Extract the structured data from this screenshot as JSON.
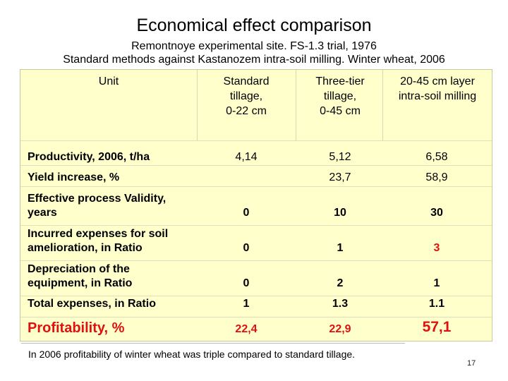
{
  "title": "Economical effect comparison",
  "subtitle_1": "Remontnoye experimental site. FS-1.3 trial, 1976",
  "subtitle_2": "Standard methods against Kastanozem intra-soil milling. Winter wheat, 2006",
  "table": {
    "header": {
      "unit": "Unit",
      "col1": [
        "Standard",
        "tillage,",
        "0-22 cm"
      ],
      "col2": [
        "Three-tier",
        "tillage,",
        "0-45 cm"
      ],
      "col3": [
        "20-45 cm layer",
        "intra-soil milling"
      ]
    },
    "rows": [
      {
        "label": [
          "Productivity, 2006, t/ha"
        ],
        "values": [
          "4,14",
          "5,12",
          "6,58"
        ]
      },
      {
        "label": [
          "Yield increase, %"
        ],
        "values": [
          "",
          "23,7",
          "58,9"
        ]
      },
      {
        "label": [
          "Effective process Validity,",
          "years"
        ],
        "values": [
          "0",
          "10",
          "30"
        ]
      },
      {
        "label": [
          "Incurred expenses for soil",
          "amelioration, in Ratio"
        ],
        "values": [
          "0",
          "1",
          "3"
        ]
      },
      {
        "label": [
          "Depreciation of the",
          "equipment, in Ratio"
        ],
        "values": [
          "0",
          "2",
          "1"
        ]
      },
      {
        "label": [
          "Total expenses, in Ratio"
        ],
        "values": [
          "1",
          "1.3",
          "1.1"
        ]
      },
      {
        "label": [
          "Profitability, %"
        ],
        "values": [
          "22,4",
          "22,9",
          "57,1"
        ]
      }
    ]
  },
  "footnote": "In 2006 profitability of winter wheat was triple compared to standard tillage.",
  "page_number": "17",
  "colors": {
    "table_background": "#ffffcc",
    "highlight_red": "#e01010"
  }
}
